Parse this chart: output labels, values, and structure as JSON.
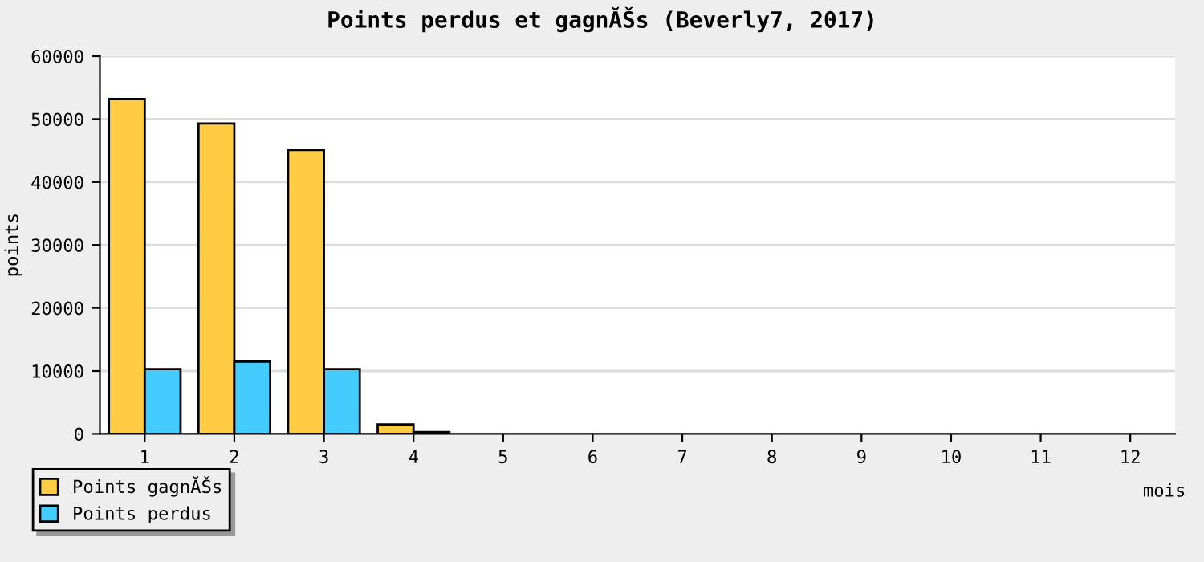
{
  "chart_data": {
    "type": "bar",
    "title": "Points perdus et gagnĂŠs (Beverly7, 2017)",
    "xlabel": "mois",
    "ylabel": "points",
    "categories": [
      "1",
      "2",
      "3",
      "4",
      "5",
      "6",
      "7",
      "8",
      "9",
      "10",
      "11",
      "12"
    ],
    "series": [
      {
        "name": "Points gagnĂŠs",
        "color": "#ffcc44",
        "values": [
          53200,
          49300,
          45100,
          1500,
          null,
          null,
          null,
          null,
          null,
          null,
          null,
          null
        ]
      },
      {
        "name": "Points perdus",
        "color": "#44ccff",
        "values": [
          10300,
          11500,
          10300,
          300,
          null,
          null,
          null,
          null,
          null,
          null,
          null,
          null
        ]
      }
    ],
    "ylim": [
      0,
      60000
    ],
    "yticks": [
      0,
      10000,
      20000,
      30000,
      40000,
      50000,
      60000
    ],
    "grid": "y",
    "legend": "bottom left"
  }
}
